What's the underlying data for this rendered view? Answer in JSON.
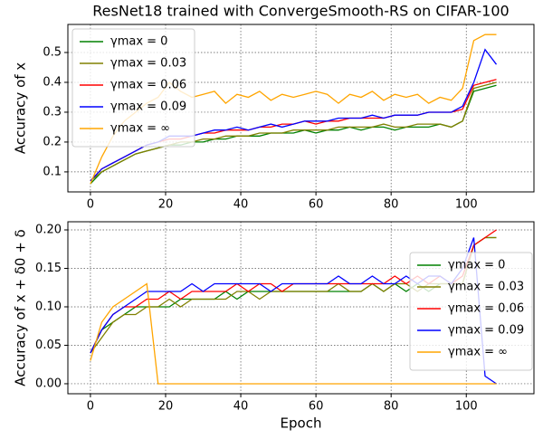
{
  "chart_data": [
    {
      "type": "line",
      "title": "ResNet18 trained with ConvergeSmooth-RS on CIFAR-100",
      "ylabel": "Accuracy of x",
      "x": [
        0,
        3,
        6,
        9,
        12,
        15,
        18,
        21,
        24,
        27,
        30,
        33,
        36,
        39,
        42,
        45,
        48,
        51,
        54,
        57,
        60,
        63,
        66,
        69,
        72,
        75,
        78,
        81,
        84,
        87,
        90,
        93,
        96,
        99,
        102,
        105,
        108
      ],
      "xlim": [
        -6,
        118
      ],
      "xticks": [
        0,
        20,
        40,
        60,
        80,
        100
      ],
      "ylim": [
        0.033,
        0.594
      ],
      "yticks": [
        0.1,
        0.2,
        0.3,
        0.4,
        0.5
      ],
      "grid": true,
      "legend": "upper left",
      "series": [
        {
          "name": "γmax = 0",
          "color": "#008000",
          "values": [
            0.06,
            0.1,
            0.12,
            0.14,
            0.16,
            0.17,
            0.18,
            0.19,
            0.19,
            0.2,
            0.2,
            0.21,
            0.21,
            0.22,
            0.22,
            0.22,
            0.23,
            0.23,
            0.23,
            0.24,
            0.23,
            0.24,
            0.24,
            0.25,
            0.24,
            0.25,
            0.25,
            0.24,
            0.25,
            0.25,
            0.25,
            0.26,
            0.25,
            0.27,
            0.37,
            0.38,
            0.39
          ]
        },
        {
          "name": "γmax = 0.03",
          "color": "#808000",
          "values": [
            0.07,
            0.1,
            0.12,
            0.14,
            0.16,
            0.17,
            0.18,
            0.19,
            0.2,
            0.2,
            0.21,
            0.21,
            0.22,
            0.22,
            0.22,
            0.23,
            0.23,
            0.23,
            0.24,
            0.24,
            0.24,
            0.24,
            0.25,
            0.25,
            0.25,
            0.25,
            0.26,
            0.25,
            0.25,
            0.26,
            0.26,
            0.26,
            0.25,
            0.27,
            0.38,
            0.39,
            0.4
          ]
        },
        {
          "name": "γmax = 0.06",
          "color": "#ff0000",
          "values": [
            0.07,
            0.11,
            0.13,
            0.15,
            0.17,
            0.19,
            0.2,
            0.21,
            0.21,
            0.22,
            0.23,
            0.23,
            0.24,
            0.24,
            0.24,
            0.25,
            0.25,
            0.26,
            0.26,
            0.27,
            0.26,
            0.27,
            0.27,
            0.28,
            0.28,
            0.28,
            0.28,
            0.29,
            0.29,
            0.29,
            0.3,
            0.3,
            0.3,
            0.31,
            0.39,
            0.4,
            0.41
          ]
        },
        {
          "name": "γmax = 0.09",
          "color": "#0000ff",
          "values": [
            0.07,
            0.11,
            0.13,
            0.15,
            0.17,
            0.19,
            0.2,
            0.22,
            0.22,
            0.22,
            0.23,
            0.24,
            0.24,
            0.25,
            0.24,
            0.25,
            0.26,
            0.25,
            0.26,
            0.27,
            0.27,
            0.27,
            0.28,
            0.28,
            0.28,
            0.29,
            0.28,
            0.29,
            0.29,
            0.29,
            0.3,
            0.3,
            0.3,
            0.32,
            0.4,
            0.51,
            0.46
          ]
        },
        {
          "name": "γmax = ∞",
          "color": "#ffa500",
          "values": [
            0.06,
            0.15,
            0.22,
            0.27,
            0.3,
            0.33,
            0.35,
            0.4,
            0.37,
            0.35,
            0.36,
            0.37,
            0.33,
            0.36,
            0.35,
            0.37,
            0.34,
            0.36,
            0.35,
            0.36,
            0.37,
            0.36,
            0.33,
            0.36,
            0.35,
            0.37,
            0.34,
            0.36,
            0.35,
            0.36,
            0.33,
            0.35,
            0.34,
            0.38,
            0.54,
            0.56,
            0.56
          ]
        }
      ]
    },
    {
      "type": "line",
      "ylabel": "Accuracy of x + δ0 + δ",
      "xlabel": "Epoch",
      "x": [
        0,
        3,
        6,
        9,
        12,
        15,
        18,
        21,
        24,
        27,
        30,
        33,
        36,
        39,
        42,
        45,
        48,
        51,
        54,
        57,
        60,
        63,
        66,
        69,
        72,
        75,
        78,
        81,
        84,
        87,
        90,
        93,
        96,
        99,
        102,
        105,
        108
      ],
      "xlim": [
        -6,
        118
      ],
      "xticks": [
        0,
        20,
        40,
        60,
        80,
        100
      ],
      "ylim": [
        -0.013,
        0.2106
      ],
      "yticks": [
        {
          "value": 0,
          "label": "0.00"
        },
        0.05,
        {
          "value": 0.1,
          "label": "0.10"
        },
        0.15,
        {
          "value": 0.2,
          "label": "0.20"
        }
      ],
      "grid": true,
      "legend": "center right",
      "series": [
        {
          "name": "γmax = 0",
          "color": "#008000",
          "values": [
            0.04,
            0.07,
            0.08,
            0.09,
            0.1,
            0.1,
            0.1,
            0.1,
            0.11,
            0.11,
            0.11,
            0.11,
            0.12,
            0.11,
            0.12,
            0.12,
            0.12,
            0.12,
            0.12,
            0.12,
            0.12,
            0.12,
            0.12,
            0.12,
            0.12,
            0.13,
            0.12,
            0.13,
            0.12,
            0.13,
            0.12,
            0.13,
            0.13,
            0.13,
            0.18,
            0.19,
            0.19
          ]
        },
        {
          "name": "γmax = 0.03",
          "color": "#808000",
          "values": [
            0.04,
            0.06,
            0.08,
            0.09,
            0.09,
            0.1,
            0.1,
            0.11,
            0.1,
            0.11,
            0.11,
            0.11,
            0.11,
            0.12,
            0.12,
            0.11,
            0.12,
            0.12,
            0.12,
            0.12,
            0.12,
            0.12,
            0.13,
            0.12,
            0.12,
            0.13,
            0.12,
            0.13,
            0.13,
            0.12,
            0.13,
            0.13,
            0.13,
            0.13,
            0.18,
            0.19,
            0.19
          ]
        },
        {
          "name": "γmax = 0.06",
          "color": "#ff0000",
          "values": [
            0.04,
            0.07,
            0.09,
            0.1,
            0.1,
            0.11,
            0.11,
            0.12,
            0.11,
            0.12,
            0.12,
            0.12,
            0.12,
            0.13,
            0.12,
            0.13,
            0.13,
            0.12,
            0.13,
            0.13,
            0.13,
            0.13,
            0.13,
            0.13,
            0.13,
            0.13,
            0.13,
            0.14,
            0.13,
            0.14,
            0.13,
            0.14,
            0.13,
            0.14,
            0.18,
            0.19,
            0.2
          ]
        },
        {
          "name": "γmax = 0.09",
          "color": "#0000ff",
          "values": [
            0.04,
            0.07,
            0.09,
            0.1,
            0.11,
            0.12,
            0.12,
            0.12,
            0.12,
            0.13,
            0.12,
            0.13,
            0.13,
            0.13,
            0.13,
            0.13,
            0.12,
            0.13,
            0.13,
            0.13,
            0.13,
            0.13,
            0.14,
            0.13,
            0.13,
            0.14,
            0.13,
            0.13,
            0.14,
            0.13,
            0.14,
            0.14,
            0.13,
            0.15,
            0.19,
            0.01,
            0.0
          ]
        },
        {
          "name": "γmax = ∞",
          "color": "#ffa500",
          "values": [
            0.03,
            0.08,
            0.1,
            0.11,
            0.12,
            0.13,
            0.0,
            0.0,
            0.0,
            0.0,
            0.0,
            0.0,
            0.0,
            0.0,
            0.0,
            0.0,
            0.0,
            0.0,
            0.0,
            0.0,
            0.0,
            0.0,
            0.0,
            0.0,
            0.0,
            0.0,
            0.0,
            0.0,
            0.0,
            0.0,
            0.0,
            0.0,
            0.0,
            0.0,
            0.0,
            0.0,
            0.0
          ]
        }
      ]
    }
  ]
}
